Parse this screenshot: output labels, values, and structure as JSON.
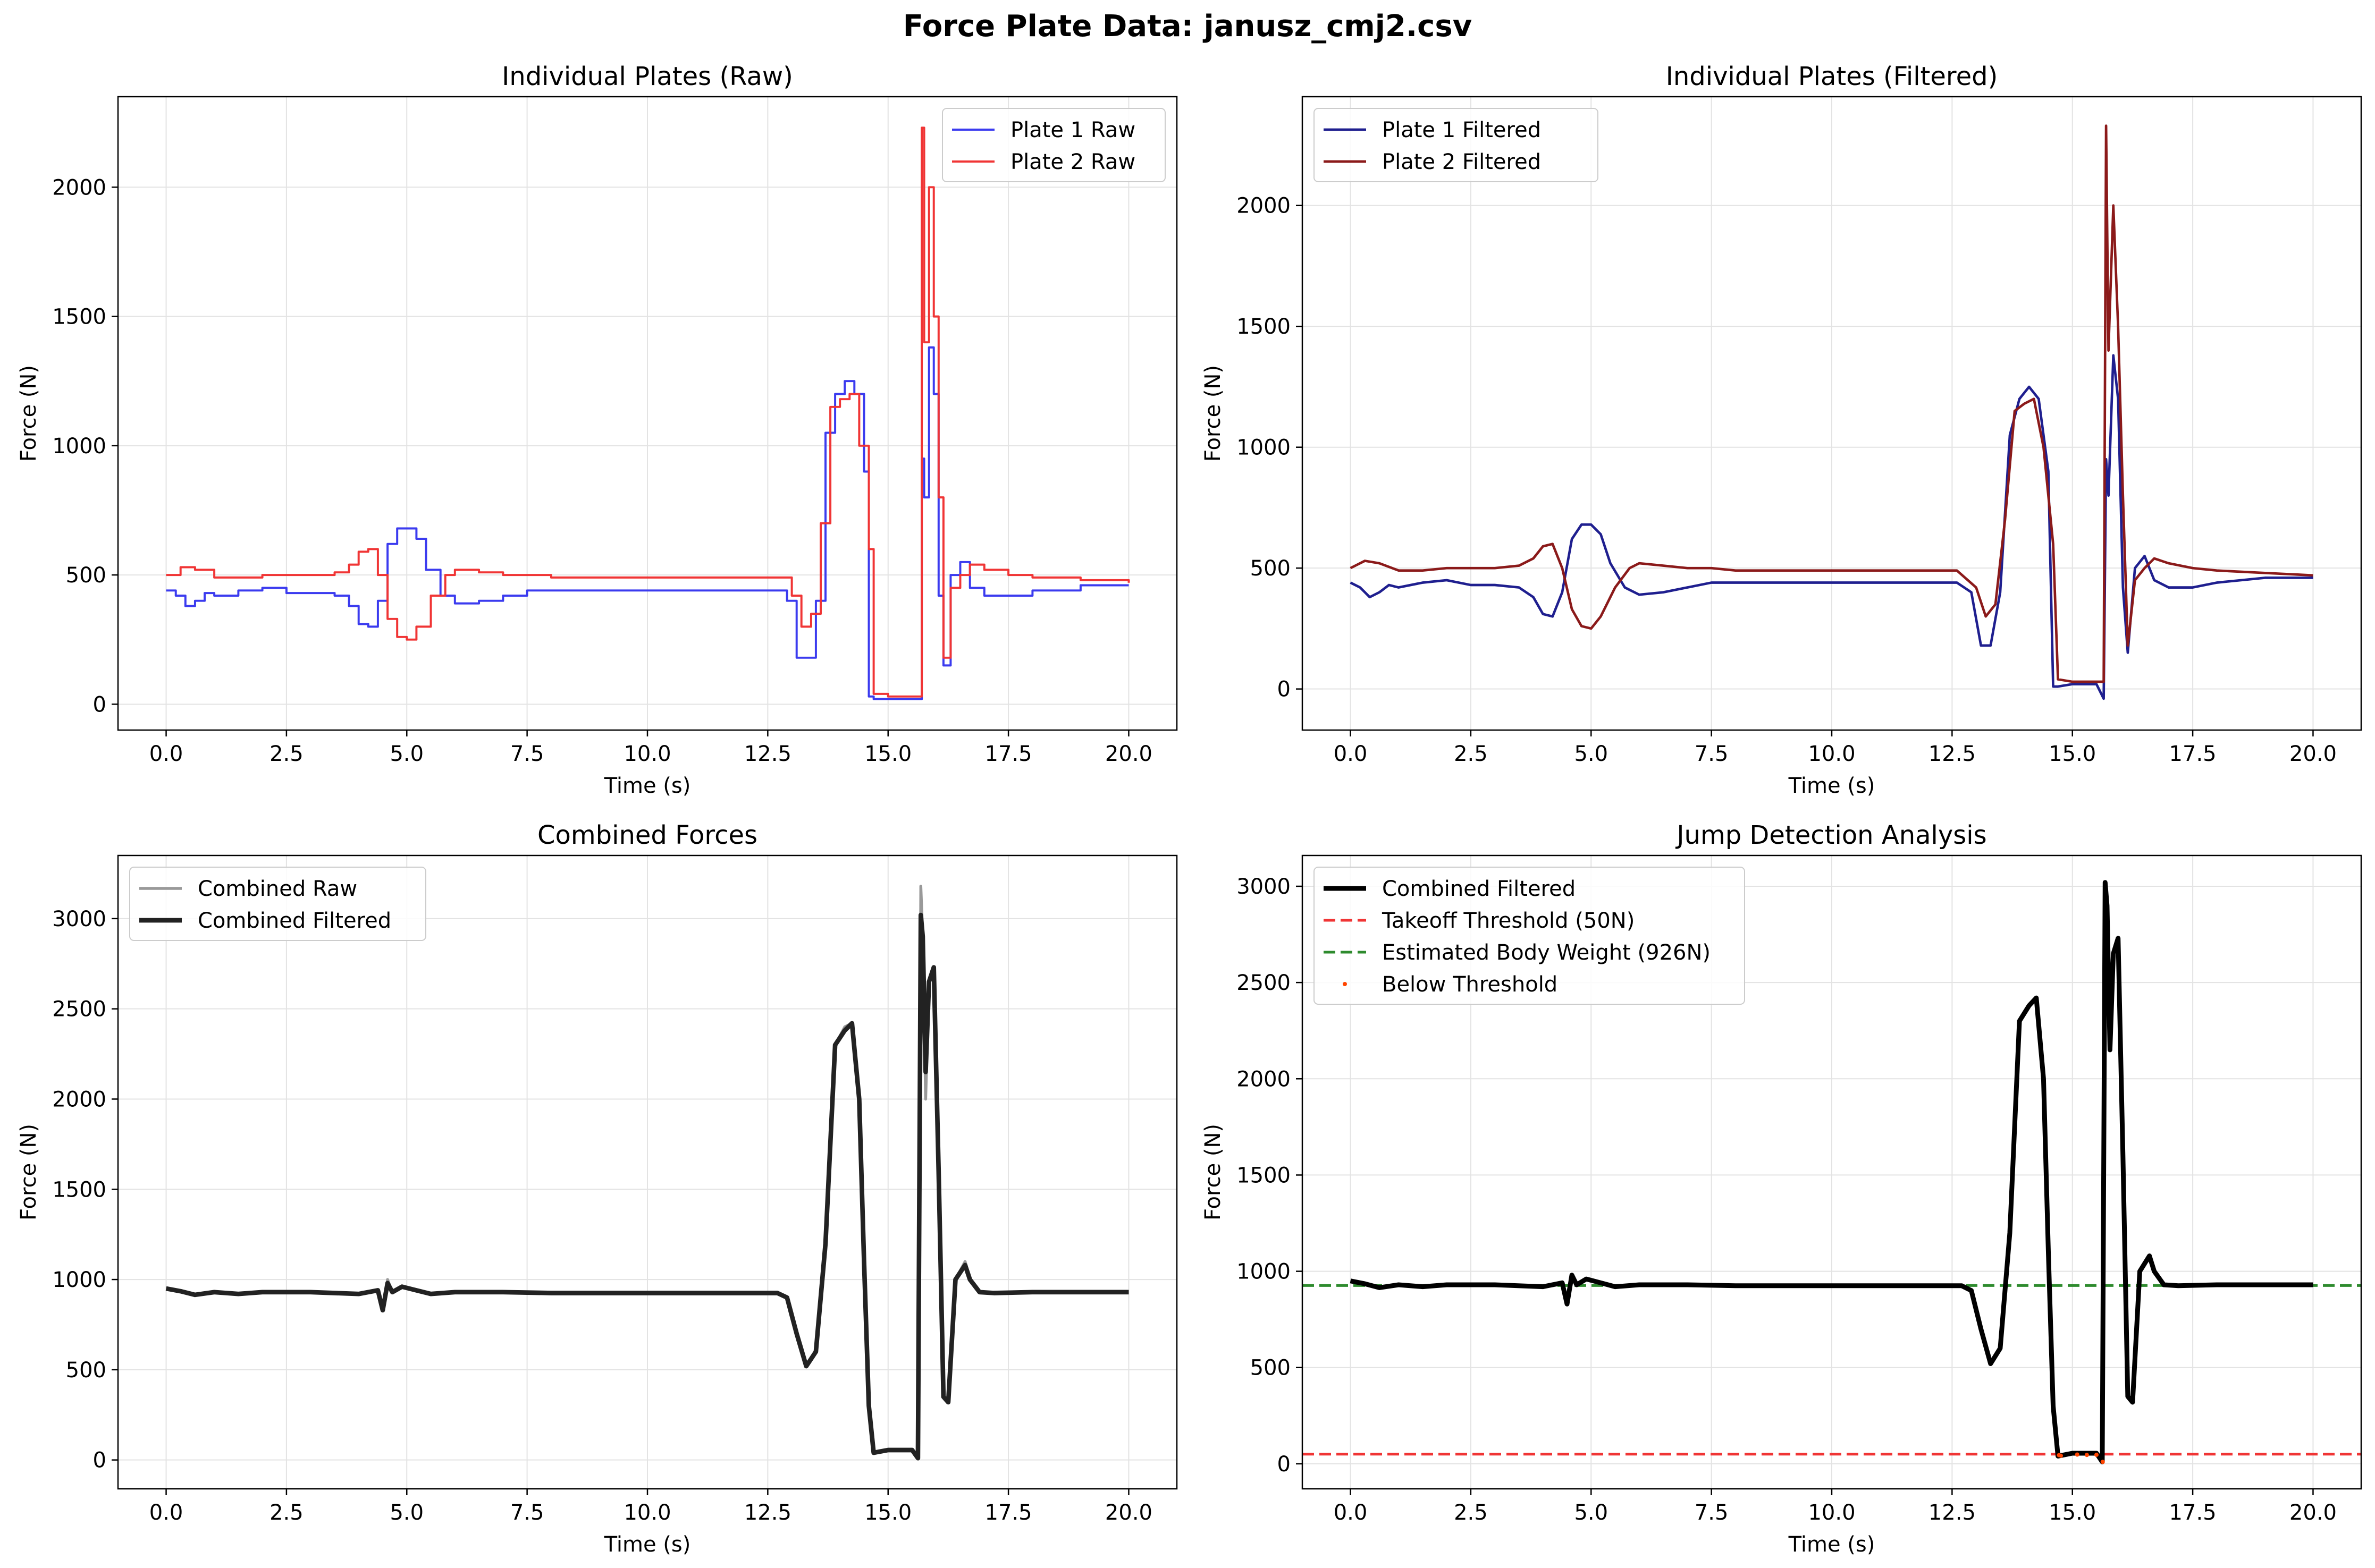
{
  "figure": {
    "suptitle": "Force Plate Data: janusz_cmj2.csv"
  },
  "chart_data": [
    {
      "type": "line",
      "title": "Individual Plates (Raw)",
      "xlabel": "Time (s)",
      "ylabel": "Force (N)",
      "xlim": [
        -1.0,
        21.0
      ],
      "ylim": [
        -100,
        2350
      ],
      "xticks": [
        0.0,
        2.5,
        5.0,
        7.5,
        10.0,
        12.5,
        15.0,
        17.5,
        20.0
      ],
      "xtick_labels": [
        "0.0",
        "2.5",
        "5.0",
        "7.5",
        "10.0",
        "12.5",
        "15.0",
        "17.5",
        "20.0"
      ],
      "yticks": [
        0,
        500,
        1000,
        1500,
        2000
      ],
      "ytick_labels": [
        "0",
        "500",
        "1000",
        "1500",
        "2000"
      ],
      "grid": true,
      "legend": "top-right",
      "series": [
        {
          "name": "Plate 1 Raw",
          "color": "#3b3bef",
          "width": 2.2,
          "opacity": 1.0,
          "step": true,
          "x": [
            0,
            0.2,
            0.4,
            0.6,
            0.8,
            1.0,
            1.5,
            2.0,
            2.5,
            3.0,
            3.5,
            3.8,
            4.0,
            4.2,
            4.4,
            4.6,
            4.8,
            5.0,
            5.2,
            5.4,
            5.7,
            6.0,
            6.5,
            7.0,
            7.5,
            8.0,
            9.0,
            10.0,
            11.0,
            12.0,
            12.6,
            12.9,
            13.1,
            13.3,
            13.5,
            13.7,
            13.9,
            14.1,
            14.3,
            14.5,
            14.6,
            14.7,
            15.0,
            15.5,
            15.65,
            15.7,
            15.75,
            15.85,
            15.95,
            16.05,
            16.15,
            16.3,
            16.5,
            16.7,
            17.0,
            17.5,
            18.0,
            19.0,
            20.0
          ],
          "y": [
            440,
            420,
            380,
            400,
            430,
            420,
            440,
            450,
            430,
            430,
            420,
            380,
            310,
            300,
            400,
            620,
            680,
            680,
            640,
            520,
            420,
            390,
            400,
            420,
            440,
            440,
            440,
            440,
            440,
            440,
            440,
            400,
            180,
            180,
            400,
            1050,
            1200,
            1250,
            1200,
            900,
            30,
            20,
            20,
            20,
            20,
            950,
            800,
            1380,
            1200,
            420,
            150,
            500,
            550,
            450,
            420,
            420,
            440,
            460,
            460
          ]
        },
        {
          "name": "Plate 2 Raw",
          "color": "#f03535",
          "width": 2.2,
          "opacity": 1.0,
          "step": true,
          "x": [
            0,
            0.3,
            0.6,
            1.0,
            1.5,
            2.0,
            2.5,
            3.0,
            3.5,
            3.8,
            4.0,
            4.2,
            4.4,
            4.6,
            4.8,
            5.0,
            5.2,
            5.5,
            5.8,
            6.0,
            6.5,
            7.0,
            7.5,
            8.0,
            9.0,
            10.0,
            11.0,
            12.0,
            12.6,
            13.0,
            13.2,
            13.4,
            13.6,
            13.8,
            14.0,
            14.2,
            14.4,
            14.6,
            14.7,
            15.0,
            15.5,
            15.65,
            15.7,
            15.75,
            15.85,
            15.95,
            16.05,
            16.15,
            16.3,
            16.5,
            16.7,
            17.0,
            17.5,
            18.0,
            19.0,
            20.0
          ],
          "y": [
            500,
            530,
            520,
            490,
            490,
            500,
            500,
            500,
            510,
            540,
            590,
            600,
            500,
            330,
            260,
            250,
            300,
            420,
            500,
            520,
            510,
            500,
            500,
            490,
            490,
            490,
            490,
            490,
            490,
            420,
            300,
            350,
            700,
            1150,
            1180,
            1200,
            1000,
            600,
            40,
            30,
            30,
            30,
            2230,
            1400,
            2000,
            1500,
            800,
            180,
            450,
            500,
            540,
            520,
            500,
            490,
            480,
            470
          ]
        }
      ]
    },
    {
      "type": "line",
      "title": "Individual Plates (Filtered)",
      "xlabel": "Time (s)",
      "ylabel": "Force (N)",
      "xlim": [
        -1.0,
        21.0
      ],
      "ylim": [
        -170,
        2450
      ],
      "xticks": [
        0.0,
        2.5,
        5.0,
        7.5,
        10.0,
        12.5,
        15.0,
        17.5,
        20.0
      ],
      "xtick_labels": [
        "0.0",
        "2.5",
        "5.0",
        "7.5",
        "10.0",
        "12.5",
        "15.0",
        "17.5",
        "20.0"
      ],
      "yticks": [
        0,
        500,
        1000,
        1500,
        2000
      ],
      "ytick_labels": [
        "0",
        "500",
        "1000",
        "1500",
        "2000"
      ],
      "grid": true,
      "legend": "top-left",
      "series": [
        {
          "name": "Plate 1 Filtered",
          "color": "#1f1f8f",
          "width": 2.6,
          "opacity": 1.0,
          "step": false,
          "x": [
            0,
            0.2,
            0.4,
            0.6,
            0.8,
            1.0,
            1.5,
            2.0,
            2.5,
            3.0,
            3.5,
            3.8,
            4.0,
            4.2,
            4.4,
            4.6,
            4.8,
            5.0,
            5.2,
            5.4,
            5.7,
            6.0,
            6.5,
            7.0,
            7.5,
            8.0,
            9.0,
            10.0,
            11.0,
            12.0,
            12.6,
            12.9,
            13.1,
            13.3,
            13.5,
            13.7,
            13.9,
            14.1,
            14.3,
            14.5,
            14.6,
            14.7,
            15.0,
            15.5,
            15.65,
            15.7,
            15.75,
            15.85,
            15.95,
            16.05,
            16.15,
            16.3,
            16.5,
            16.7,
            17.0,
            17.5,
            18.0,
            19.0,
            20.0
          ],
          "y": [
            440,
            420,
            380,
            400,
            430,
            420,
            440,
            450,
            430,
            430,
            420,
            380,
            310,
            300,
            400,
            620,
            680,
            680,
            640,
            520,
            420,
            390,
            400,
            420,
            440,
            440,
            440,
            440,
            440,
            440,
            440,
            400,
            180,
            180,
            400,
            1050,
            1200,
            1250,
            1200,
            900,
            10,
            10,
            20,
            20,
            -40,
            950,
            800,
            1380,
            1200,
            420,
            150,
            500,
            550,
            450,
            420,
            420,
            440,
            460,
            460
          ]
        },
        {
          "name": "Plate 2 Filtered",
          "color": "#8b1a1a",
          "width": 2.6,
          "opacity": 1.0,
          "step": false,
          "x": [
            0,
            0.3,
            0.6,
            1.0,
            1.5,
            2.0,
            2.5,
            3.0,
            3.5,
            3.8,
            4.0,
            4.2,
            4.4,
            4.6,
            4.8,
            5.0,
            5.2,
            5.5,
            5.8,
            6.0,
            6.5,
            7.0,
            7.5,
            8.0,
            9.0,
            10.0,
            11.0,
            12.0,
            12.6,
            13.0,
            13.2,
            13.4,
            13.6,
            13.8,
            14.0,
            14.2,
            14.4,
            14.6,
            14.7,
            15.0,
            15.5,
            15.65,
            15.7,
            15.75,
            15.85,
            15.95,
            16.05,
            16.15,
            16.3,
            16.5,
            16.7,
            17.0,
            17.5,
            18.0,
            19.0,
            20.0
          ],
          "y": [
            500,
            530,
            520,
            490,
            490,
            500,
            500,
            500,
            510,
            540,
            590,
            600,
            500,
            330,
            260,
            250,
            300,
            420,
            500,
            520,
            510,
            500,
            500,
            490,
            490,
            490,
            490,
            490,
            490,
            420,
            300,
            350,
            700,
            1150,
            1180,
            1200,
            1000,
            600,
            40,
            30,
            30,
            30,
            2330,
            1400,
            2000,
            1500,
            800,
            180,
            450,
            500,
            540,
            520,
            500,
            490,
            480,
            470
          ]
        }
      ]
    },
    {
      "type": "line",
      "title": "Combined Forces",
      "xlabel": "Time (s)",
      "ylabel": "Force (N)",
      "xlim": [
        -1.0,
        21.0
      ],
      "ylim": [
        -160,
        3350
      ],
      "xticks": [
        0.0,
        2.5,
        5.0,
        7.5,
        10.0,
        12.5,
        15.0,
        17.5,
        20.0
      ],
      "xtick_labels": [
        "0.0",
        "2.5",
        "5.0",
        "7.5",
        "10.0",
        "12.5",
        "15.0",
        "17.5",
        "20.0"
      ],
      "yticks": [
        0,
        500,
        1000,
        1500,
        2000,
        2500,
        3000
      ],
      "ytick_labels": [
        "0",
        "500",
        "1000",
        "1500",
        "2000",
        "2500",
        "3000"
      ],
      "grid": true,
      "legend": "top-left",
      "series": [
        {
          "name": "Combined Raw",
          "color": "#999999",
          "width": 3.0,
          "opacity": 1.0,
          "step": false,
          "x": [
            0,
            0.3,
            0.6,
            1.0,
            1.5,
            2.0,
            3.0,
            4.0,
            4.4,
            4.5,
            4.6,
            4.7,
            4.9,
            5.2,
            5.5,
            6.0,
            7.0,
            8.0,
            9.0,
            10.0,
            11.0,
            12.0,
            12.7,
            12.9,
            13.1,
            13.3,
            13.5,
            13.7,
            13.9,
            14.1,
            14.25,
            14.4,
            14.5,
            14.6,
            14.7,
            15.0,
            15.5,
            15.62,
            15.68,
            15.72,
            15.78,
            15.85,
            15.95,
            16.05,
            16.15,
            16.25,
            16.4,
            16.6,
            16.7,
            16.9,
            17.2,
            18.0,
            19.0,
            20.0
          ],
          "y": [
            950,
            935,
            915,
            930,
            920,
            930,
            930,
            920,
            940,
            830,
            1000,
            930,
            960,
            940,
            920,
            930,
            930,
            925,
            925,
            925,
            925,
            925,
            925,
            900,
            700,
            520,
            600,
            1200,
            2300,
            2400,
            2420,
            2000,
            1100,
            300,
            40,
            55,
            55,
            10,
            3180,
            2900,
            2000,
            2650,
            2700,
            1600,
            350,
            320,
            1000,
            1100,
            1000,
            930,
            925,
            930,
            930,
            930
          ]
        },
        {
          "name": "Combined Filtered",
          "color": "#222222",
          "width": 4.8,
          "opacity": 1.0,
          "step": false,
          "x": [
            0,
            0.3,
            0.6,
            1.0,
            1.5,
            2.0,
            3.0,
            4.0,
            4.4,
            4.5,
            4.6,
            4.7,
            4.9,
            5.2,
            5.5,
            6.0,
            7.0,
            8.0,
            9.0,
            10.0,
            11.0,
            12.0,
            12.7,
            12.9,
            13.1,
            13.3,
            13.5,
            13.7,
            13.9,
            14.1,
            14.25,
            14.4,
            14.5,
            14.6,
            14.7,
            15.0,
            15.5,
            15.62,
            15.68,
            15.72,
            15.78,
            15.85,
            15.95,
            16.05,
            16.15,
            16.25,
            16.4,
            16.6,
            16.7,
            16.9,
            17.2,
            18.0,
            19.0,
            20.0
          ],
          "y": [
            950,
            935,
            915,
            930,
            920,
            930,
            930,
            920,
            940,
            830,
            980,
            930,
            960,
            940,
            920,
            930,
            930,
            925,
            925,
            925,
            925,
            925,
            925,
            900,
            700,
            520,
            600,
            1200,
            2300,
            2380,
            2420,
            2000,
            1100,
            300,
            40,
            55,
            55,
            10,
            3020,
            2900,
            2150,
            2650,
            2730,
            1600,
            350,
            320,
            1000,
            1080,
            1000,
            930,
            925,
            930,
            930,
            930
          ]
        }
      ]
    },
    {
      "type": "line",
      "title": "Jump Detection Analysis",
      "xlabel": "Time (s)",
      "ylabel": "Force (N)",
      "xlim": [
        -1.0,
        21.0
      ],
      "ylim": [
        -130,
        3160
      ],
      "xticks": [
        0.0,
        2.5,
        5.0,
        7.5,
        10.0,
        12.5,
        15.0,
        17.5,
        20.0
      ],
      "xtick_labels": [
        "0.0",
        "2.5",
        "5.0",
        "7.5",
        "10.0",
        "12.5",
        "15.0",
        "17.5",
        "20.0"
      ],
      "yticks": [
        0,
        500,
        1000,
        1500,
        2000,
        2500,
        3000
      ],
      "ytick_labels": [
        "0",
        "500",
        "1000",
        "1500",
        "2000",
        "2500",
        "3000"
      ],
      "grid": true,
      "legend": "top-left",
      "hlines": [
        {
          "name": "Takeoff Threshold (50N)",
          "y": 50,
          "color": "#f03535"
        },
        {
          "name": "Estimated Body Weight (926N)",
          "y": 926,
          "color": "#2e8b2e"
        }
      ],
      "scatter": {
        "name": "Below Threshold",
        "color": "#ff4500",
        "x": [
          14.72,
          14.76,
          15.1,
          15.3,
          15.5,
          15.63
        ],
        "y": [
          45,
          42,
          48,
          46,
          47,
          10
        ]
      },
      "series": [
        {
          "name": "Combined Filtered",
          "color": "#000000",
          "width": 5.0,
          "opacity": 1.0,
          "step": false,
          "x": [
            0,
            0.3,
            0.6,
            1.0,
            1.5,
            2.0,
            3.0,
            4.0,
            4.4,
            4.5,
            4.6,
            4.7,
            4.9,
            5.2,
            5.5,
            6.0,
            7.0,
            8.0,
            9.0,
            10.0,
            11.0,
            12.0,
            12.7,
            12.9,
            13.1,
            13.3,
            13.5,
            13.7,
            13.9,
            14.1,
            14.25,
            14.4,
            14.5,
            14.6,
            14.7,
            15.0,
            15.5,
            15.62,
            15.68,
            15.72,
            15.78,
            15.85,
            15.95,
            16.05,
            16.15,
            16.25,
            16.4,
            16.6,
            16.7,
            16.9,
            17.2,
            18.0,
            19.0,
            20.0
          ],
          "y": [
            950,
            935,
            915,
            930,
            920,
            930,
            930,
            920,
            940,
            830,
            980,
            930,
            960,
            940,
            920,
            930,
            930,
            925,
            925,
            925,
            925,
            925,
            925,
            900,
            700,
            520,
            600,
            1200,
            2300,
            2380,
            2420,
            2000,
            1100,
            300,
            40,
            55,
            55,
            10,
            3020,
            2900,
            2150,
            2650,
            2730,
            1600,
            350,
            320,
            1000,
            1080,
            1000,
            930,
            925,
            930,
            930,
            930
          ]
        }
      ]
    }
  ]
}
